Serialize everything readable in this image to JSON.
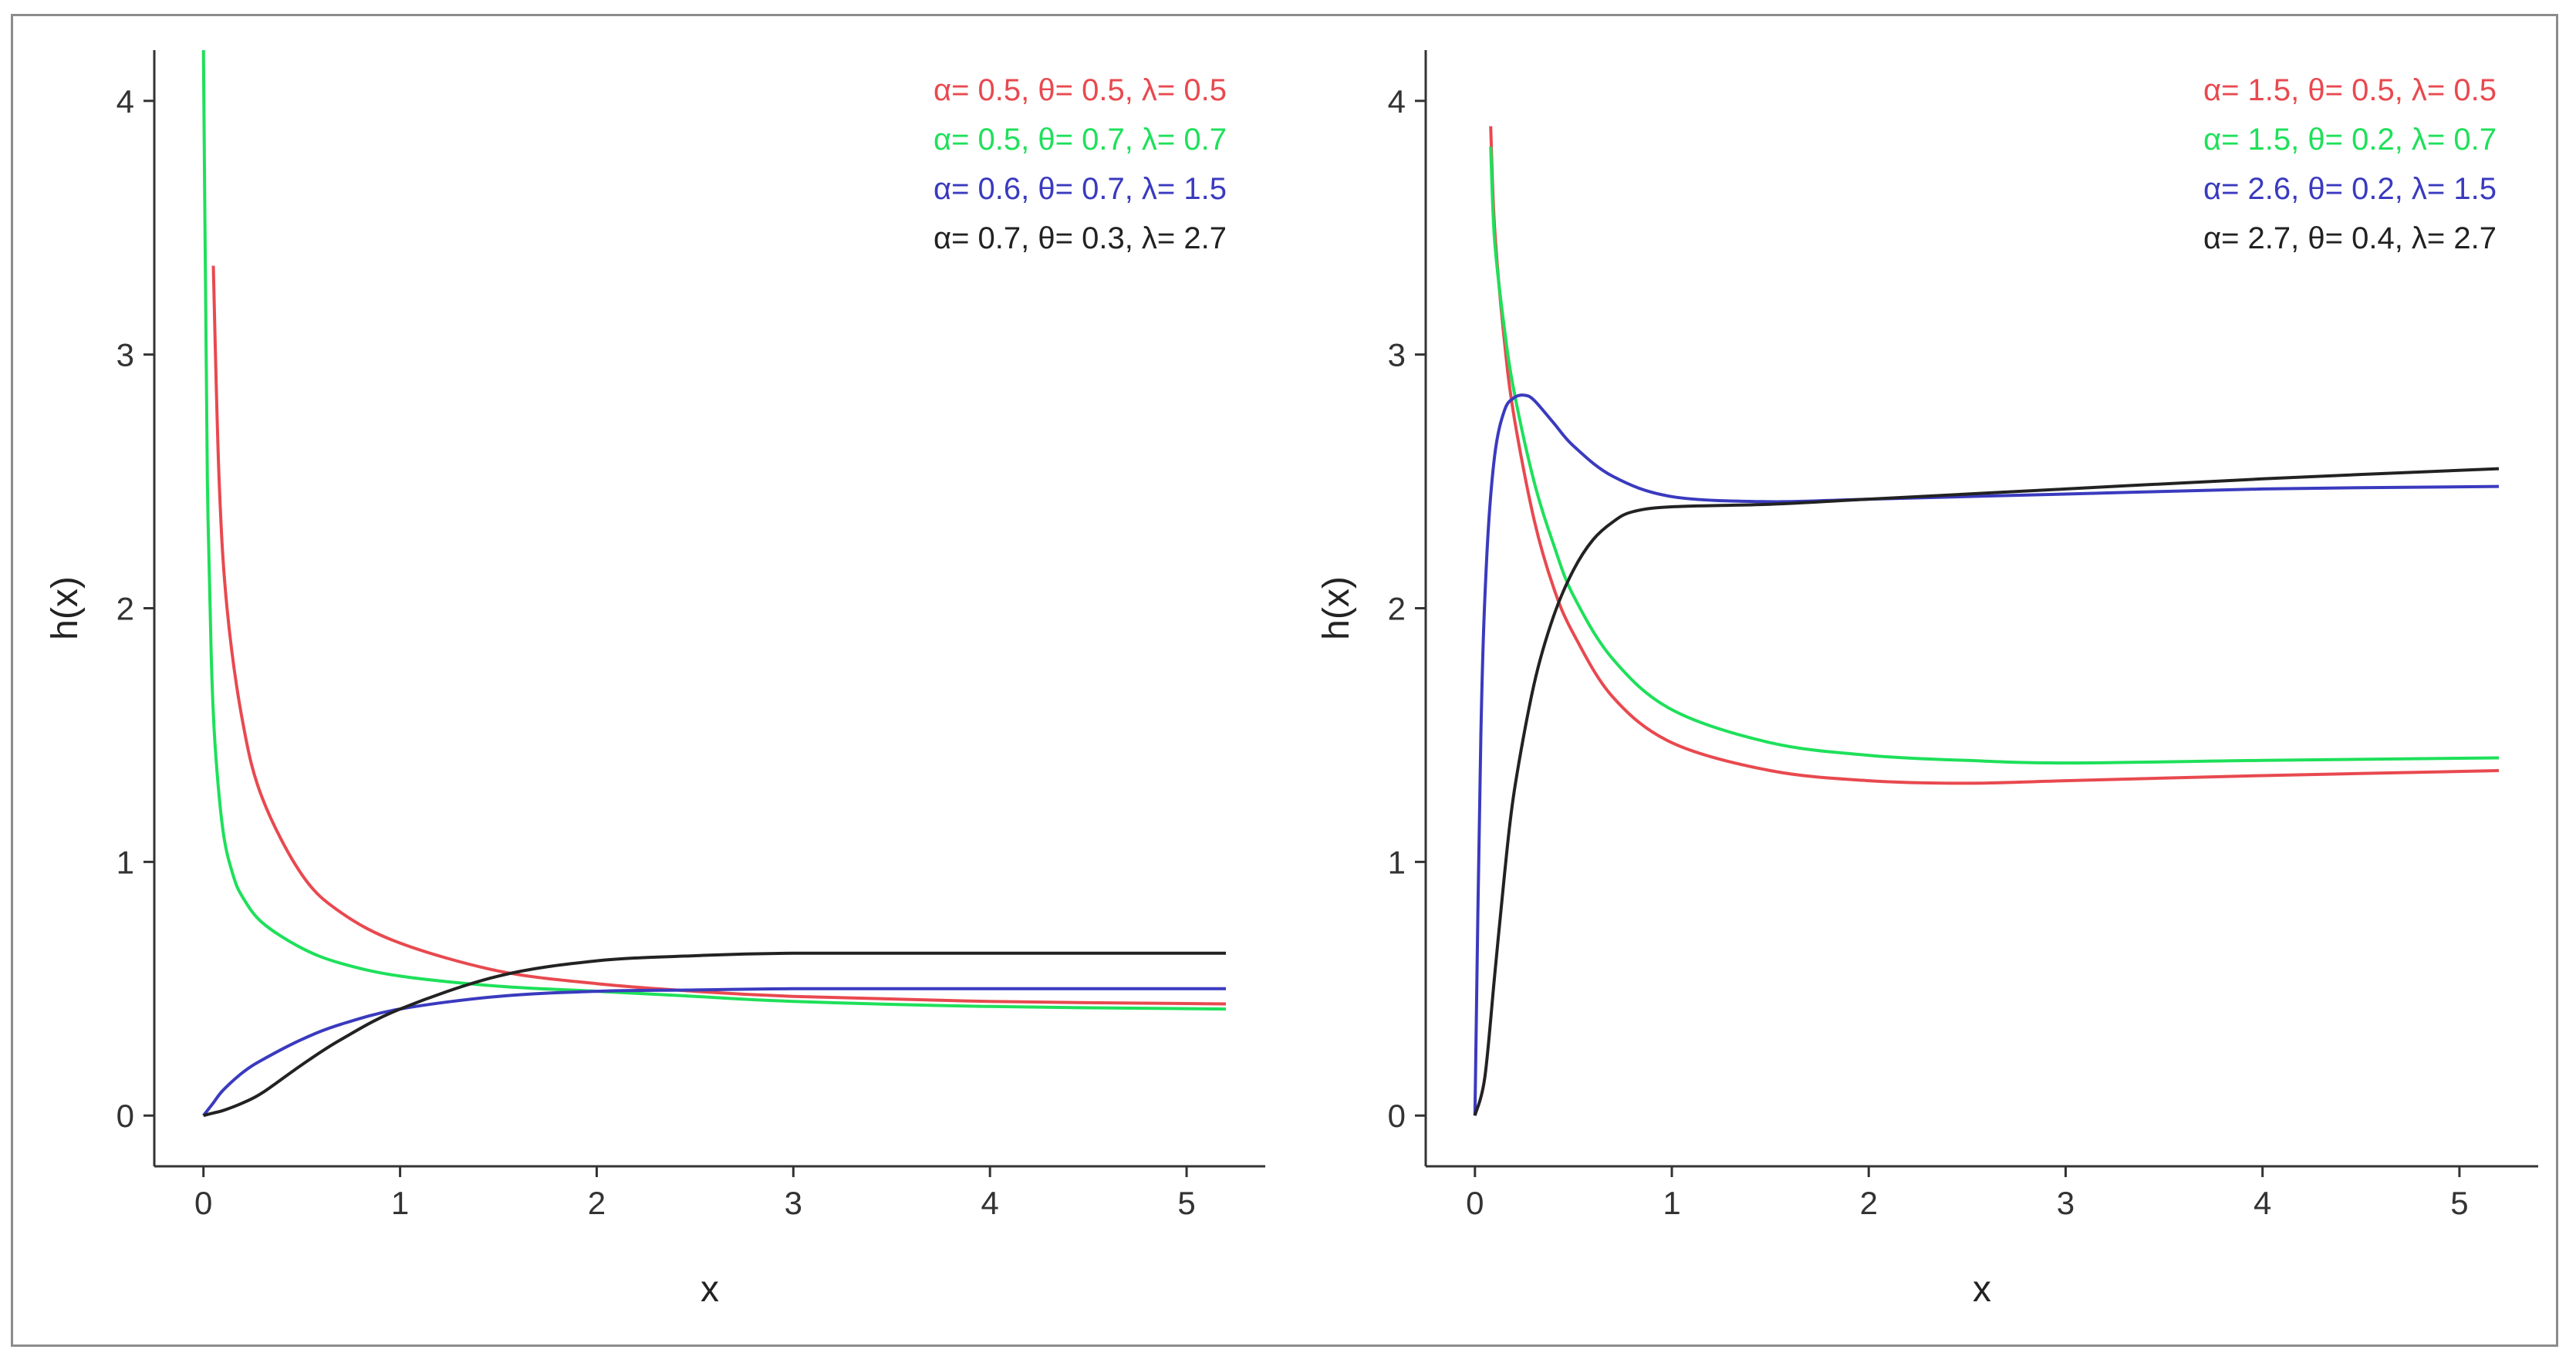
{
  "chart_data": [
    {
      "type": "line",
      "title": "",
      "xlabel": "x",
      "ylabel": "h(x)",
      "xlim": [
        -0.25,
        5.4
      ],
      "ylim": [
        -0.2,
        4.2
      ],
      "xticks": [
        "0",
        "1",
        "2",
        "3",
        "4",
        "5"
      ],
      "yticks": [
        "0",
        "1",
        "2",
        "3",
        "4"
      ],
      "legend_position": "top-right",
      "grid": false,
      "series": [
        {
          "name": "α= 0.5, θ= 0.5, λ= 0.5",
          "color": "#e8494f",
          "x": [
            0.05,
            0.08,
            0.12,
            0.2,
            0.3,
            0.5,
            0.7,
            1.0,
            1.5,
            2.0,
            2.5,
            3.0,
            4.0,
            5.2
          ],
          "y": [
            3.35,
            2.5,
            2.0,
            1.55,
            1.25,
            0.95,
            0.8,
            0.68,
            0.57,
            0.52,
            0.49,
            0.47,
            0.45,
            0.44
          ]
        },
        {
          "name": "α= 0.5, θ= 0.7, λ= 0.7",
          "color": "#1ee05a",
          "x": [
            0.0,
            0.01,
            0.02,
            0.04,
            0.06,
            0.1,
            0.15,
            0.2,
            0.3,
            0.5,
            0.7,
            1.0,
            1.5,
            2.0,
            2.5,
            3.0,
            4.0,
            5.2
          ],
          "y": [
            4.2,
            3.3,
            2.5,
            1.8,
            1.45,
            1.12,
            0.95,
            0.86,
            0.76,
            0.66,
            0.6,
            0.55,
            0.51,
            0.49,
            0.47,
            0.45,
            0.43,
            0.42
          ]
        },
        {
          "name": "α= 0.6, θ= 0.7, λ= 1.5",
          "color": "#3a3abf",
          "x": [
            0.0,
            0.05,
            0.1,
            0.2,
            0.3,
            0.5,
            0.7,
            1.0,
            1.5,
            2.0,
            2.5,
            3.0,
            4.0,
            5.2
          ],
          "y": [
            0.0,
            0.05,
            0.1,
            0.17,
            0.22,
            0.3,
            0.36,
            0.42,
            0.47,
            0.49,
            0.495,
            0.5,
            0.5,
            0.5
          ]
        },
        {
          "name": "α= 0.7, θ= 0.3, λ= 2.7",
          "color": "#222222",
          "x": [
            0.0,
            0.05,
            0.1,
            0.2,
            0.3,
            0.5,
            0.7,
            1.0,
            1.5,
            2.0,
            2.5,
            3.0,
            4.0,
            5.2
          ],
          "y": [
            0.0,
            0.01,
            0.02,
            0.05,
            0.09,
            0.2,
            0.3,
            0.42,
            0.55,
            0.61,
            0.63,
            0.64,
            0.64,
            0.64
          ]
        }
      ]
    },
    {
      "type": "line",
      "title": "",
      "xlabel": "x",
      "ylabel": "h(x)",
      "xlim": [
        -0.25,
        5.4
      ],
      "ylim": [
        -0.2,
        4.2
      ],
      "xticks": [
        "0",
        "1",
        "2",
        "3",
        "4",
        "5"
      ],
      "yticks": [
        "0",
        "1",
        "2",
        "3",
        "4"
      ],
      "legend_position": "top-right",
      "grid": false,
      "series": [
        {
          "name": "α= 1.5, θ= 0.5, λ= 0.5",
          "color": "#e8494f",
          "x": [
            0.08,
            0.1,
            0.15,
            0.2,
            0.3,
            0.4,
            0.5,
            0.7,
            1.0,
            1.5,
            2.0,
            2.5,
            3.0,
            4.0,
            5.2
          ],
          "y": [
            3.9,
            3.5,
            3.05,
            2.75,
            2.35,
            2.08,
            1.9,
            1.65,
            1.47,
            1.36,
            1.32,
            1.31,
            1.32,
            1.34,
            1.36
          ]
        },
        {
          "name": "α= 1.5, θ= 0.2, λ= 0.7",
          "color": "#1ee05a",
          "x": [
            0.08,
            0.1,
            0.15,
            0.2,
            0.3,
            0.4,
            0.5,
            0.7,
            1.0,
            1.5,
            2.0,
            2.5,
            3.0,
            4.0,
            5.2
          ],
          "y": [
            3.82,
            3.45,
            3.1,
            2.85,
            2.5,
            2.25,
            2.05,
            1.8,
            1.6,
            1.47,
            1.42,
            1.4,
            1.39,
            1.4,
            1.41
          ]
        },
        {
          "name": "α= 2.6, θ= 0.2, λ= 1.5",
          "color": "#3a3abf",
          "x": [
            0.0,
            0.03,
            0.06,
            0.1,
            0.15,
            0.2,
            0.25,
            0.3,
            0.4,
            0.5,
            0.7,
            1.0,
            1.5,
            2.0,
            3.0,
            4.0,
            5.2
          ],
          "y": [
            0.0,
            1.5,
            2.2,
            2.6,
            2.78,
            2.83,
            2.84,
            2.82,
            2.73,
            2.64,
            2.52,
            2.44,
            2.42,
            2.43,
            2.45,
            2.47,
            2.48
          ]
        },
        {
          "name": "α= 2.7, θ= 0.4, λ= 2.7",
          "color": "#222222",
          "x": [
            0.0,
            0.05,
            0.1,
            0.15,
            0.2,
            0.3,
            0.4,
            0.5,
            0.6,
            0.7,
            0.8,
            1.0,
            1.5,
            2.0,
            3.0,
            4.0,
            5.2
          ],
          "y": [
            0.0,
            0.15,
            0.55,
            0.95,
            1.28,
            1.7,
            1.97,
            2.15,
            2.27,
            2.34,
            2.38,
            2.4,
            2.41,
            2.43,
            2.47,
            2.51,
            2.55
          ]
        }
      ]
    }
  ]
}
